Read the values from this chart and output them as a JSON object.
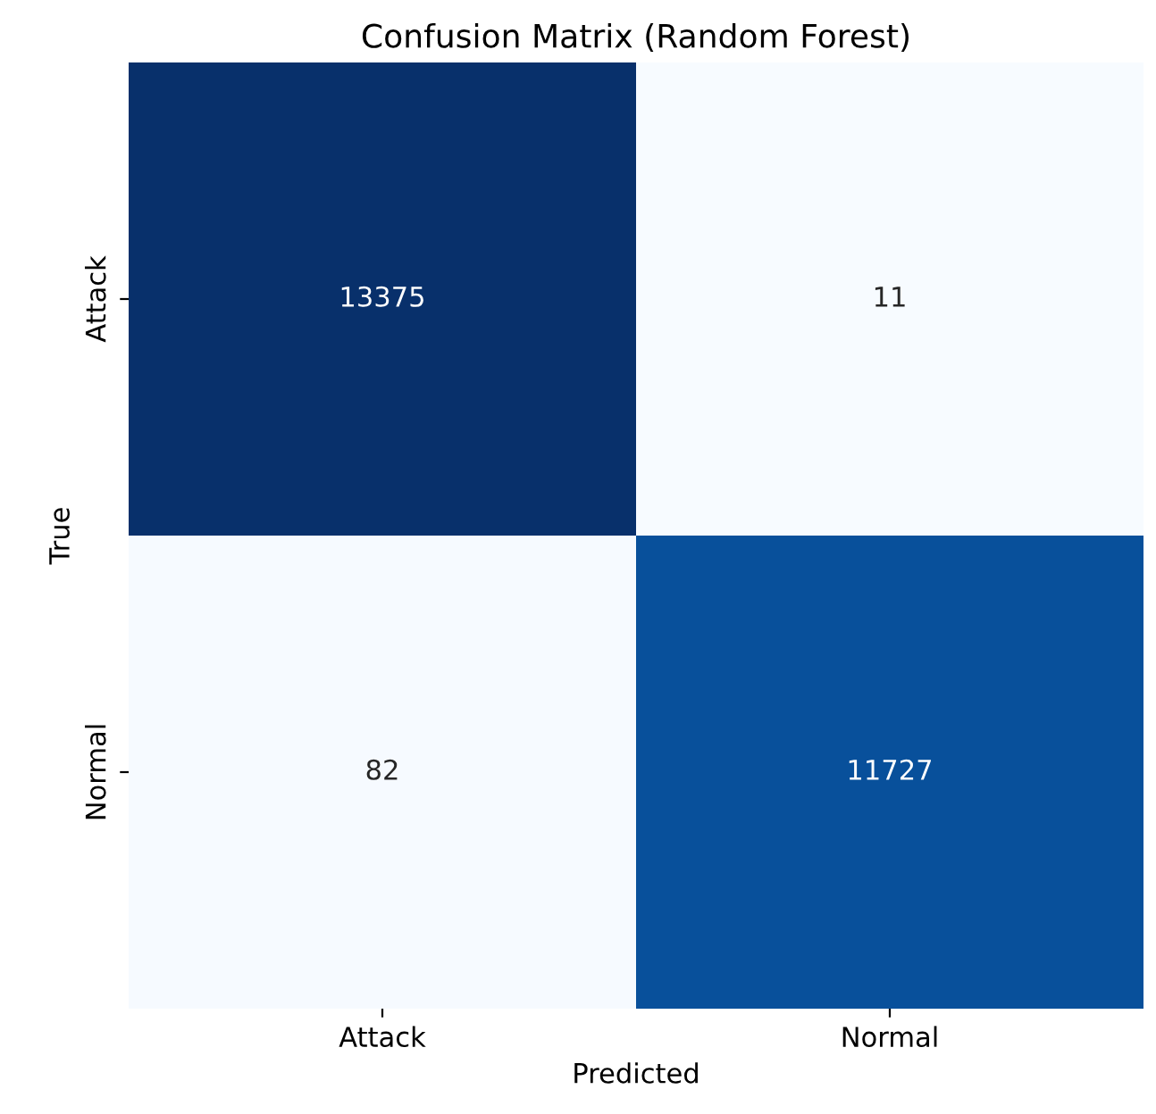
{
  "chart_data": {
    "type": "heatmap",
    "title": "Confusion Matrix (Random Forest)",
    "xlabel": "Predicted",
    "ylabel": "True",
    "categories": [
      "Attack",
      "Normal"
    ],
    "y_categories": [
      "Attack",
      "Normal"
    ],
    "cells": [
      [
        13375,
        11
      ],
      [
        82,
        11727
      ]
    ],
    "data_labels": true
  }
}
